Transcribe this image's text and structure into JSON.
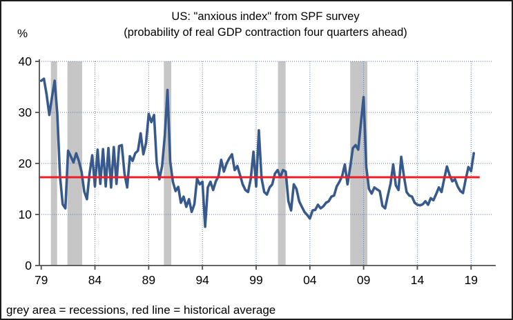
{
  "chart_data": {
    "type": "line",
    "title": "US: \"anxious index\" from SPF survey",
    "subtitle": "(probability of real GDP contraction four quarters ahead)",
    "unit_label": "%",
    "footnote": "grey area = recessions, red line = historical average",
    "series_name": "anxious index",
    "x_start": 1979.0,
    "x_step_years": 0.25,
    "x_end": 2019.25,
    "frequency": "quarterly",
    "ylim": [
      0,
      40
    ],
    "xlim_years": [
      1979,
      2021
    ],
    "yticks": [
      0,
      10,
      20,
      30,
      40
    ],
    "xticks": [
      {
        "label": "79",
        "year": 1979
      },
      {
        "label": "84",
        "year": 1984
      },
      {
        "label": "89",
        "year": 1989
      },
      {
        "label": "94",
        "year": 1994
      },
      {
        "label": "99",
        "year": 1999
      },
      {
        "label": "04",
        "year": 2004
      },
      {
        "label": "09",
        "year": 2009
      },
      {
        "label": "14",
        "year": 2014
      },
      {
        "label": "19",
        "year": 2019
      }
    ],
    "grid": "dotted",
    "legend_position": "none",
    "average_line": {
      "value": 17.3,
      "meaning": "historical average",
      "end_year": 2019.8
    },
    "recessions_year_spans": [
      [
        1979.9,
        1980.48
      ],
      [
        1981.44,
        1982.81
      ],
      [
        1990.41,
        1991.1
      ],
      [
        2001.03,
        2001.74
      ],
      [
        2007.75,
        2009.35
      ]
    ],
    "values": [
      36.2,
      36.6,
      33.5,
      29.5,
      33.0,
      36.2,
      29.7,
      17.5,
      12.0,
      11.2,
      22.5,
      21.4,
      20.2,
      22.0,
      20.5,
      18.4,
      14.5,
      13.0,
      18.0,
      21.6,
      15.5,
      22.7,
      16.0,
      22.8,
      15.5,
      23.0,
      15.3,
      23.2,
      16.0,
      23.4,
      23.6,
      18.0,
      15.3,
      21.4,
      20.5,
      22.0,
      22.5,
      25.9,
      21.8,
      24.0,
      29.7,
      28.1,
      29.5,
      20.0,
      16.9,
      19.5,
      25.5,
      34.4,
      20.4,
      16.4,
      14.6,
      15.4,
      12.3,
      13.5,
      11.5,
      13.0,
      10.5,
      12.0,
      17.0,
      15.9,
      16.4,
      7.6,
      15.3,
      16.4,
      14.8,
      16.5,
      17.5,
      20.7,
      18.4,
      20.0,
      21.0,
      21.8,
      18.7,
      19.5,
      17.7,
      15.9,
      14.8,
      14.4,
      17.0,
      22.3,
      15.5,
      26.5,
      17.1,
      14.4,
      13.9,
      15.3,
      15.9,
      18.0,
      18.7,
      17.3,
      18.7,
      18.4,
      12.6,
      10.8,
      15.9,
      15.0,
      12.6,
      11.5,
      10.5,
      9.9,
      9.2,
      10.8,
      10.9,
      11.9,
      11.2,
      11.6,
      12.3,
      12.6,
      13.5,
      13.7,
      15.5,
      16.4,
      17.5,
      19.8,
      15.9,
      19.3,
      23.0,
      23.6,
      22.7,
      28.0,
      33.0,
      19.3,
      15.0,
      14.1,
      15.3,
      14.9,
      14.6,
      11.7,
      11.2,
      13.7,
      16.0,
      19.8,
      15.7,
      14.8,
      21.3,
      17.5,
      14.4,
      13.7,
      13.5,
      12.3,
      11.9,
      11.8,
      12.0,
      12.6,
      11.9,
      13.2,
      12.8,
      14.0,
      15.3,
      14.4,
      17.0,
      19.4,
      17.7,
      16.5,
      16.9,
      15.5,
      14.6,
      14.2,
      16.9,
      19.3,
      18.5,
      22.0
    ],
    "colors": {
      "line": "#37598c",
      "average_line": "#ee1c24",
      "recession_band": "#c6c6c6",
      "grid": "#5577bb",
      "axis": "#4d4d4d",
      "text": "#000000"
    }
  }
}
